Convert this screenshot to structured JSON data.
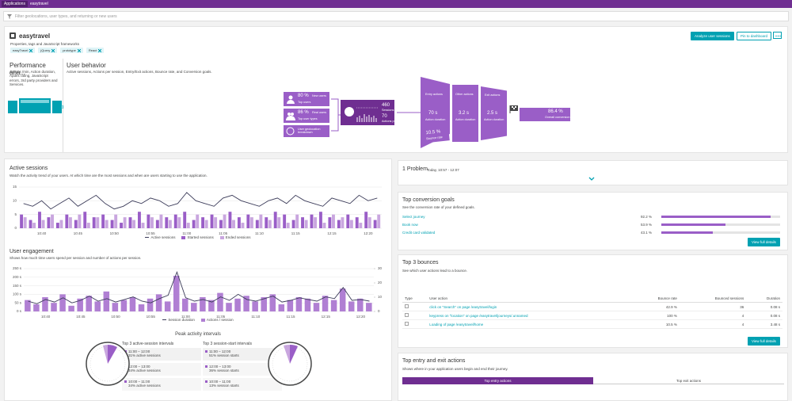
{
  "nav": {
    "breadcrumb": [
      "Applications",
      "easytravel"
    ],
    "filter_placeholder": "Filter geolocations, user types, and returning or new users"
  },
  "header": {
    "title": "easytravel",
    "properties": "Properties, tags and JavaScript frameworks",
    "tags": [
      "easyTravel",
      "jQuery",
      "prototype",
      "React"
    ],
    "buttons": [
      "Analyze user sessions",
      "Pin to dashboard"
    ]
  },
  "performance": {
    "title": "Performance ana...",
    "description": "Actions /min, Action duration, Apdex rating, JavaScript errors, 3rd party providers and Services."
  },
  "behavior": {
    "title": "User behavior",
    "description": "Active sessions, Actions per session, Entry/Exit actions, Bounce rate, and Conversion goals.",
    "new_users": {
      "value": "80 %",
      "label": "New users",
      "sub": "Top users"
    },
    "real_users": {
      "value": "86 %",
      "label": "Real users",
      "sub": "Top user types"
    },
    "geolocation": "User geolocation breakdown",
    "sessions": {
      "value": "460",
      "label": "Sessions"
    },
    "actions": {
      "value": "70",
      "label": "Actions per session"
    },
    "entry": {
      "title": "Entry actions",
      "value": "70 s",
      "label": "Action duration"
    },
    "other": {
      "title": "Other actions",
      "value": "3.2 s",
      "label": "Action duration"
    },
    "exit": {
      "title": "Exit actions",
      "value": "2.5 s",
      "label": "Action duration"
    },
    "bounce": {
      "value": "10.5 %",
      "label": "Bounce rate"
    },
    "conversion": {
      "value": "86.4 %",
      "label": "Overall conversion"
    }
  },
  "active_sessions": {
    "title": "Active sessions",
    "subtitle": "Watch the activity trend of your users. At which time are the most sessions and when are users starting to use the application.",
    "categories": [
      null,
      null,
      "10:40",
      null,
      null,
      null,
      "10:45",
      null,
      null,
      null,
      "10:50",
      null,
      null,
      null,
      "10:55",
      null,
      null,
      null,
      "11:00",
      null,
      null,
      null,
      "11:05",
      null,
      null,
      null,
      "11:10",
      null,
      null,
      null,
      "11:15",
      null,
      null,
      null,
      "12:15",
      null,
      null,
      null,
      "12:20",
      null
    ],
    "ylim": [
      0,
      15
    ],
    "yticks": [
      0,
      5,
      10,
      15
    ],
    "series": [
      {
        "name": "Active sessions",
        "type": "line",
        "color": "#3c3c5a",
        "values": [
          9,
          8,
          10,
          7,
          9,
          11,
          8,
          10,
          12,
          9,
          7,
          8,
          10,
          9,
          11,
          10,
          8,
          9,
          13,
          10,
          9,
          8,
          11,
          12,
          10,
          9,
          8,
          10,
          11,
          9,
          12,
          10,
          9,
          8,
          11,
          10,
          9,
          12,
          10,
          11
        ]
      },
      {
        "name": "Started sessions",
        "type": "bar",
        "color": "#9a5ec7",
        "values": [
          5,
          3,
          6,
          4,
          2,
          5,
          3,
          6,
          4,
          5,
          3,
          2,
          4,
          6,
          5,
          3,
          4,
          5,
          6,
          3,
          4,
          5,
          3,
          6,
          4,
          5,
          3,
          4,
          6,
          5,
          3,
          4,
          5,
          6,
          4,
          3,
          5,
          4,
          6,
          3
        ]
      },
      {
        "name": "Ended sessions",
        "type": "bar",
        "color": "#c9a6df",
        "values": [
          4,
          2,
          3,
          5,
          3,
          4,
          5,
          2,
          4,
          3,
          5,
          4,
          3,
          2,
          4,
          5,
          3,
          4,
          2,
          5,
          3,
          4,
          5,
          3,
          2,
          4,
          5,
          3,
          4,
          2,
          5,
          3,
          4,
          2,
          5,
          4,
          3,
          2,
          4,
          5
        ]
      }
    ]
  },
  "user_engagement": {
    "title": "User engagement",
    "subtitle": "Shows how much time users spend per session and number of actions per session.",
    "categories": [
      null,
      null,
      "10:40",
      null,
      null,
      null,
      "10:45",
      null,
      null,
      null,
      "10:50",
      null,
      null,
      null,
      "10:55",
      null,
      null,
      null,
      "11:00",
      null,
      null,
      null,
      "11:05",
      null,
      null,
      null,
      "11:10",
      null,
      null,
      null,
      "11:15",
      null,
      null,
      null,
      "12:15",
      null,
      null,
      null,
      "12:20",
      null
    ],
    "ylim": [
      0,
      250
    ],
    "yticks": [
      {
        "value": 0,
        "label": "0 s"
      },
      {
        "value": 50,
        "label": "50 s"
      },
      {
        "value": 100,
        "label": "100 s"
      },
      {
        "value": 150,
        "label": "150 s"
      },
      {
        "value": 200,
        "label": "200 s"
      },
      {
        "value": 250,
        "label": "250 s"
      }
    ],
    "y2lim": [
      0,
      30
    ],
    "y2ticks": [
      0,
      10,
      20,
      30
    ],
    "series": [
      {
        "name": "Session duration",
        "type": "line",
        "color": "#3c3c5a",
        "values": [
          60,
          45,
          70,
          55,
          80,
          50,
          65,
          90,
          60,
          75,
          55,
          70,
          85,
          60,
          50,
          75,
          95,
          230,
          80,
          60,
          70,
          55,
          85,
          65,
          100,
          70,
          60,
          75,
          90,
          55,
          65,
          80,
          70,
          60,
          85,
          75,
          140,
          65,
          70,
          60
        ]
      },
      {
        "name": "Actions / session",
        "type": "bar",
        "axis": "y2",
        "color": "#b07fd3",
        "values": [
          8,
          5,
          10,
          6,
          12,
          4,
          9,
          11,
          7,
          14,
          6,
          8,
          10,
          5,
          9,
          12,
          7,
          25,
          9,
          6,
          10,
          8,
          13,
          6,
          9,
          11,
          7,
          10,
          12,
          5,
          8,
          10,
          9,
          6,
          11,
          8,
          16,
          7,
          9,
          6
        ]
      }
    ]
  },
  "peak": {
    "title": "Peak activity intervals",
    "active": {
      "title": "Top 3 active-session intervals",
      "items": [
        {
          "time": "11:00 – 12:00",
          "desc": "31% active sessions"
        },
        {
          "time": "12:00 – 13:00",
          "desc": "34% active sessions"
        },
        {
          "time": "10:00 – 11:00",
          "desc": "34% active sessions"
        }
      ]
    },
    "starts": {
      "title": "Top 3 session-start intervals",
      "items": [
        {
          "time": "11:00 – 12:00",
          "desc": "51% session starts"
        },
        {
          "time": "12:00 – 13:00",
          "desc": "36% session starts"
        },
        {
          "time": "10:00 – 11:00",
          "desc": "13% session starts"
        }
      ]
    }
  },
  "problem": {
    "title": "1 Problem",
    "time": "Today, 10:57 - 12:07"
  },
  "conversion_goals": {
    "title": "Top conversion goals",
    "subtitle": "See the conversion rate of your defined goals.",
    "color": "#9a5ec7",
    "button": "View full details",
    "goals": [
      {
        "name": "Select journey",
        "rate": {
          "value": 92.2,
          "label": "92.2 %"
        }
      },
      {
        "name": "Book now",
        "rate": {
          "value": 53.9,
          "label": "53.9 %"
        }
      },
      {
        "name": "Credit card validated",
        "rate": {
          "value": 43.1,
          "label": "43.1 %"
        }
      }
    ]
  },
  "bounces": {
    "title": "Top 3 bounces",
    "subtitle": "See which user actions lead to a bounce.",
    "button": "View full details",
    "columns": [
      "Type",
      "User action",
      "Bounce rate",
      "Bounced sessions",
      "Duration"
    ],
    "rows": [
      [
        "click on \"Search\" on page /easytravel/login",
        "42.9 %",
        "36",
        "0.08 s"
      ],
      [
        "keypress on \"location\" on page /easytravel/journeys/.unnamed",
        "100 %",
        "4",
        "0.08 s"
      ],
      [
        "Loading of page /easytravel/home",
        "10.5 %",
        "4",
        "3.48 s"
      ]
    ]
  },
  "entry_exit": {
    "title": "Top entry and exit actions",
    "subtitle": "Shows where in your application users begin and end their journey.",
    "tabs": [
      "Top entry actions",
      "Top exit actions"
    ]
  }
}
